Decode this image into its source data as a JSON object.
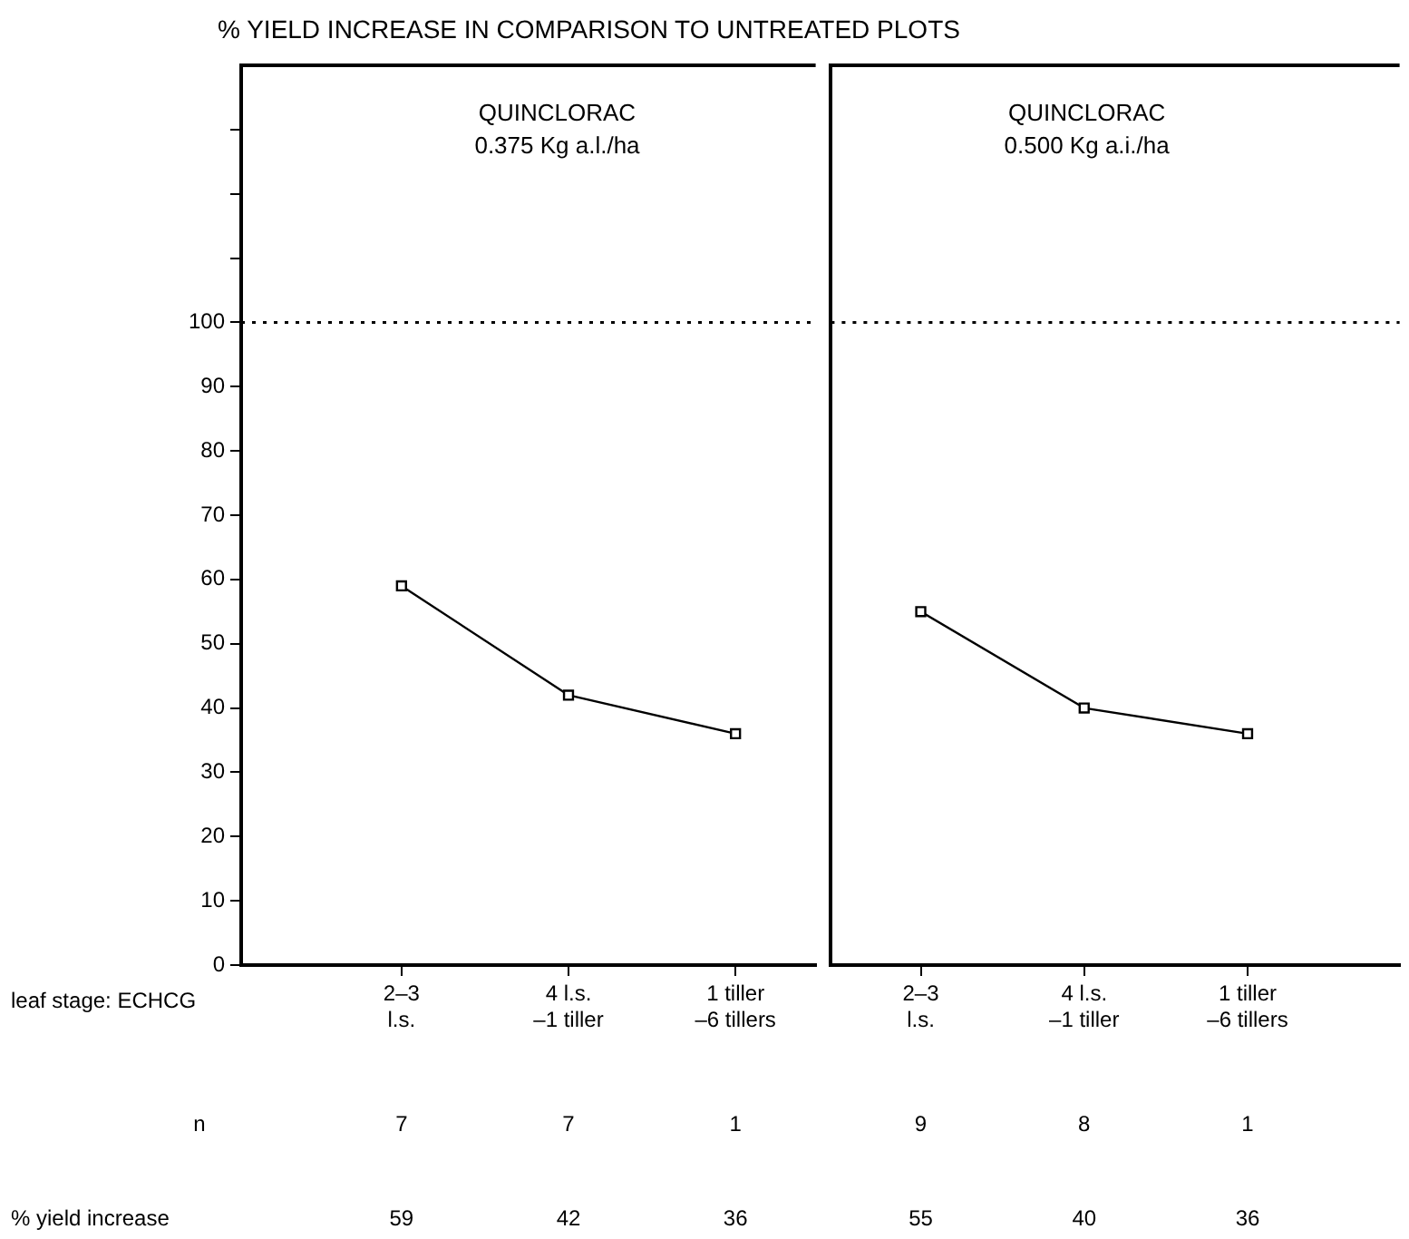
{
  "chart_data": [
    {
      "type": "line",
      "title": "% YIELD INCREASE IN COMPARISON TO UNTREATED PLOTS",
      "subtitle": "QUINCLORAC\n0.375 Kg a.l./ha",
      "xlabel": "leaf stage: ECHCG",
      "categories": [
        "2–3\nl.s.",
        "4 l.s.\n–1 tiller",
        "1 tiller\n–6 tillers"
      ],
      "series": [
        {
          "color": "#000000",
          "values": [
            59,
            42,
            36
          ]
        }
      ],
      "ylim": [
        0,
        140
      ],
      "yticks": [
        0,
        10,
        20,
        30,
        40,
        50,
        60,
        70,
        80,
        90,
        100,
        {
          "value": 110,
          "label": null
        },
        {
          "value": 120,
          "label": null
        },
        {
          "value": 130,
          "label": null
        }
      ],
      "ref_lines": [
        {
          "axis": "y",
          "value": 100,
          "line_style": "dotted",
          "color": "#000000"
        }
      ],
      "marker": "square",
      "line_style": "solid",
      "legend": false,
      "data_labels": true,
      "annotations": [
        "n",
        "% yield increase",
        "7",
        "7",
        "1"
      ]
    },
    {
      "type": "line",
      "subtitle": "QUINCLORAC\n0.500 Kg a.i./ha",
      "categories": [
        "2–3\nl.s.",
        "4 l.s.\n–1 tiller",
        "1 tiller\n–6 tillers"
      ],
      "series": [
        {
          "color": "#000000",
          "values": [
            55,
            40,
            36
          ]
        }
      ],
      "ylim": [
        0,
        140
      ],
      "yticks": [
        0,
        10,
        20,
        30,
        40,
        50,
        60,
        70,
        80,
        90,
        100,
        {
          "value": 110,
          "label": null
        },
        {
          "value": 120,
          "label": null
        },
        {
          "value": 130,
          "label": null
        }
      ],
      "ref_lines": [
        {
          "axis": "y",
          "value": 100,
          "line_style": "dotted",
          "color": "#000000"
        }
      ],
      "marker": "square",
      "line_style": "solid",
      "legend": false,
      "data_labels": true,
      "tick_labels": "x",
      "annotations": [
        "9",
        "8",
        "1"
      ]
    }
  ]
}
